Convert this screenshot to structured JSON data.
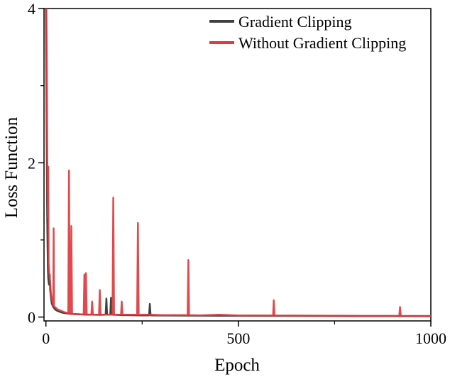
{
  "chart_data": {
    "type": "line",
    "xlabel": "Epoch",
    "ylabel": "Loss Function",
    "xlim": [
      -5,
      1000
    ],
    "ylim": [
      -0.05,
      4
    ],
    "x_ticks": [
      0,
      500,
      1000
    ],
    "y_ticks": [
      0,
      2,
      4
    ],
    "grid": false,
    "legend_position": "top-right",
    "series": [
      {
        "name": "Gradient Clipping",
        "color": "#404040",
        "points": [
          [
            0,
            4.0
          ],
          [
            1,
            3.2
          ],
          [
            2,
            2.3
          ],
          [
            3,
            1.5
          ],
          [
            4,
            1.0
          ],
          [
            5,
            0.65
          ],
          [
            6,
            0.5
          ],
          [
            8,
            0.42
          ],
          [
            10,
            0.55
          ],
          [
            11,
            0.35
          ],
          [
            13,
            0.25
          ],
          [
            15,
            0.18
          ],
          [
            18,
            0.14
          ],
          [
            22,
            0.11
          ],
          [
            26,
            0.09
          ],
          [
            30,
            0.08
          ],
          [
            35,
            0.07
          ],
          [
            40,
            0.06
          ],
          [
            50,
            0.05
          ],
          [
            60,
            0.045
          ],
          [
            70,
            0.04
          ],
          [
            80,
            0.038
          ],
          [
            90,
            0.035
          ],
          [
            100,
            0.032
          ],
          [
            120,
            0.03
          ],
          [
            140,
            0.028
          ],
          [
            155,
            0.03
          ],
          [
            157,
            0.24
          ],
          [
            159,
            0.03
          ],
          [
            167,
            0.03
          ],
          [
            169,
            0.25
          ],
          [
            171,
            0.03
          ],
          [
            200,
            0.025
          ],
          [
            250,
            0.022
          ],
          [
            268,
            0.022
          ],
          [
            270,
            0.17
          ],
          [
            272,
            0.022
          ],
          [
            300,
            0.02
          ],
          [
            400,
            0.018
          ],
          [
            500,
            0.016
          ],
          [
            600,
            0.015
          ],
          [
            700,
            0.014
          ],
          [
            800,
            0.013
          ],
          [
            900,
            0.012
          ],
          [
            1000,
            0.011
          ]
        ]
      },
      {
        "name": "Without Gradient Clipping",
        "color": "#e0393e",
        "points": [
          [
            0,
            4.0
          ],
          [
            1,
            4.0
          ],
          [
            2,
            3.5
          ],
          [
            3,
            2.5
          ],
          [
            4,
            1.6
          ],
          [
            5,
            1.3
          ],
          [
            6,
            1.95
          ],
          [
            7,
            0.7
          ],
          [
            9,
            0.55
          ],
          [
            11,
            0.45
          ],
          [
            13,
            0.3
          ],
          [
            15,
            0.25
          ],
          [
            17,
            0.2
          ],
          [
            19,
            0.15
          ],
          [
            20,
            1.15
          ],
          [
            21,
            0.14
          ],
          [
            23,
            0.13
          ],
          [
            26,
            0.12
          ],
          [
            30,
            0.1
          ],
          [
            35,
            0.09
          ],
          [
            40,
            0.08
          ],
          [
            45,
            0.07
          ],
          [
            50,
            0.06
          ],
          [
            58,
            0.05
          ],
          [
            60,
            1.9
          ],
          [
            62,
            0.05
          ],
          [
            64,
            0.04
          ],
          [
            66,
            1.18
          ],
          [
            68,
            0.04
          ],
          [
            80,
            0.035
          ],
          [
            98,
            0.035
          ],
          [
            100,
            0.55
          ],
          [
            102,
            0.035
          ],
          [
            104,
            0.57
          ],
          [
            106,
            0.035
          ],
          [
            118,
            0.03
          ],
          [
            120,
            0.2
          ],
          [
            122,
            0.03
          ],
          [
            138,
            0.03
          ],
          [
            140,
            0.35
          ],
          [
            142,
            0.03
          ],
          [
            173,
            0.03
          ],
          [
            175,
            1.55
          ],
          [
            177,
            0.03
          ],
          [
            195,
            0.03
          ],
          [
            197,
            0.2
          ],
          [
            199,
            0.03
          ],
          [
            237,
            0.03
          ],
          [
            239,
            1.22
          ],
          [
            241,
            0.03
          ],
          [
            270,
            0.03
          ],
          [
            300,
            0.025
          ],
          [
            368,
            0.025
          ],
          [
            370,
            0.74
          ],
          [
            372,
            0.025
          ],
          [
            400,
            0.022
          ],
          [
            450,
            0.03
          ],
          [
            500,
            0.02
          ],
          [
            590,
            0.02
          ],
          [
            592,
            0.22
          ],
          [
            594,
            0.02
          ],
          [
            700,
            0.018
          ],
          [
            800,
            0.016
          ],
          [
            918,
            0.015
          ],
          [
            920,
            0.13
          ],
          [
            922,
            0.015
          ],
          [
            1000,
            0.014
          ]
        ]
      }
    ]
  }
}
